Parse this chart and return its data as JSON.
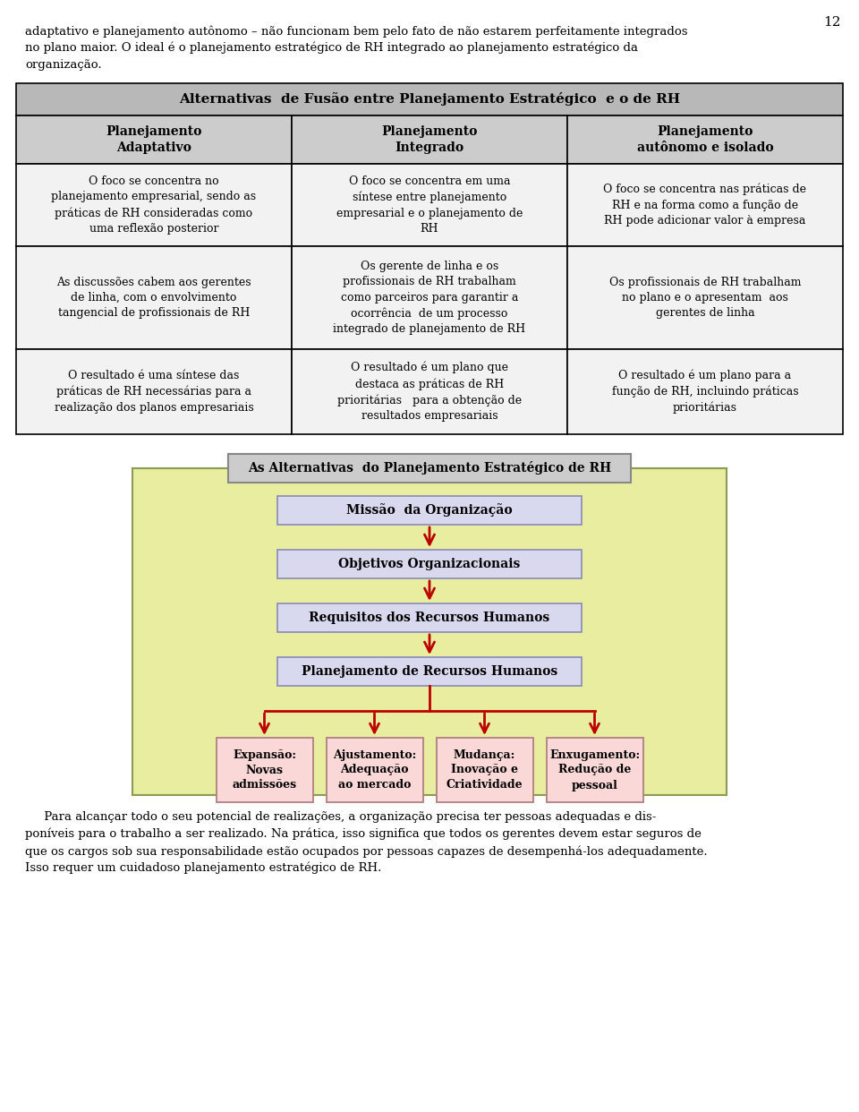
{
  "page_number": "12",
  "intro_text_lines": [
    "adaptativo e planejamento autônomo – não funcionam bem pelo fato de não estarem perfeitamente integrados",
    "no plano maior. O ideal é o planejamento estratégico de RH integrado ao planejamento estratégico da",
    "organização."
  ],
  "table_title": "Alternativas  de Fusão entre Planejamento Estratégico  e o de RH",
  "col_headers": [
    "Planejamento\nAdaptativo",
    "Planejamento\nIntegrado",
    "Planejamento\nautônomo e isolado"
  ],
  "table_data": [
    [
      "O foco se concentra no\nplanejamento empresarial, sendo as\npráticas de RH consideradas como\numa reflexão posterior",
      "O foco se concentra em uma\nsíntese entre planejamento\nempresarial e o planejamento de\nRH",
      "O foco se concentra nas práticas de\nRH e na forma como a função de\nRH pode adicionar valor à empresa"
    ],
    [
      "As discussões cabem aos gerentes\nde linha, com o envolvimento\ntangencial de profissionais de RH",
      "Os gerente de linha e os\nprofissionais de RH trabalham\ncomo parceiros para garantir a\nocorrência  de um processo\nintegrado de planejamento de RH",
      "Os profissionais de RH trabalham\nno plano e o apresentam  aos\ngerentes de linha"
    ],
    [
      "O resultado é uma síntese das\npráticas de RH necessárias para a\nrealização dos planos empresariais",
      "O resultado é um plano que\ndestaca as práticas de RH\nprioritárias   para a obtenção de\nresultados empresariais",
      "O resultado é um plano para a\nfunção de RH, incluindo práticas\nprioritárias"
    ]
  ],
  "flowchart_title": "As Alternativas  do Planejamento Estratégico de RH",
  "flowchart_boxes": [
    "Missão  da Organização",
    "Objetivos Organizacionais",
    "Requisitos dos Recursos Humanos",
    "Planejamento de Recursos Humanos"
  ],
  "flowchart_leaves": [
    "Expansão:\nNovas\nadmissões",
    "Ajustamento:\nAdequação\nao mercado",
    "Mudança:\nInovação e\nCriatividade",
    "Enxugamento:\nRedução de\npessoal"
  ],
  "footer_text_lines": [
    "     Para alcançar todo o seu potencial de realizações, a organização precisa ter pessoas adequadas e dis-",
    "poníveis para o trabalho a ser realizado. Na prática, isso significa que todos os gerentes devem estar seguros de",
    "que os cargos sob sua responsabilidade estão ocupados por pessoas capazes de desempenhá-los adequadamente.",
    "Isso requer um cuidadoso planejamento estratégico de RH."
  ],
  "table_header_bg": "#b8b8b8",
  "table_col_header_bg": "#cccccc",
  "table_cell_bg": "#f2f2f2",
  "flowchart_outer_bg": "#e8eda0",
  "flowchart_outer_border": "#8a9a50",
  "flowchart_box_bg": "#d8d8ee",
  "flowchart_box_border": "#9090b8",
  "flowchart_leaf_bg": "#fad8d8",
  "flowchart_leaf_border": "#b08080",
  "flowchart_title_bg": "#cccccc",
  "flowchart_title_border": "#888888",
  "arrow_color": "#bb0000"
}
